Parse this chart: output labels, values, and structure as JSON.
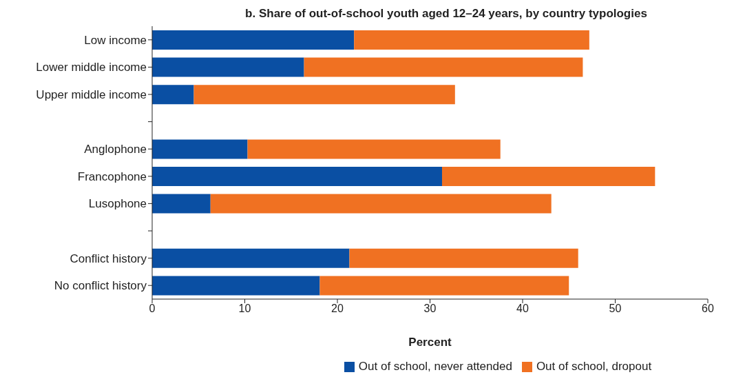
{
  "chart_data": {
    "type": "bar",
    "orientation": "horizontal",
    "stacked": true,
    "title": "b. Share of out-of-school youth aged 12–24 years, by country typologies",
    "xlabel": "Percent",
    "categories": [
      "Low income",
      "Lower middle income",
      "Upper middle income",
      null,
      "Anglophone",
      "Francophone",
      "Lusophone",
      null,
      "Conflict history",
      "No conflict history"
    ],
    "series": [
      {
        "name": "Out of school, never attended",
        "color": "#0a4fa3",
        "values": [
          21.8,
          16.4,
          4.5,
          null,
          10.3,
          31.3,
          6.3,
          null,
          21.3,
          18.1
        ]
      },
      {
        "name": "Out of school, dropout",
        "color": "#f07122",
        "values": [
          25.4,
          30.1,
          28.2,
          null,
          27.3,
          23.0,
          36.8,
          null,
          24.7,
          26.9
        ]
      }
    ],
    "xlim": [
      0,
      60
    ],
    "xticks": [
      0,
      10,
      20,
      30,
      40,
      50,
      60
    ],
    "grid": false,
    "legend": "bottom"
  }
}
